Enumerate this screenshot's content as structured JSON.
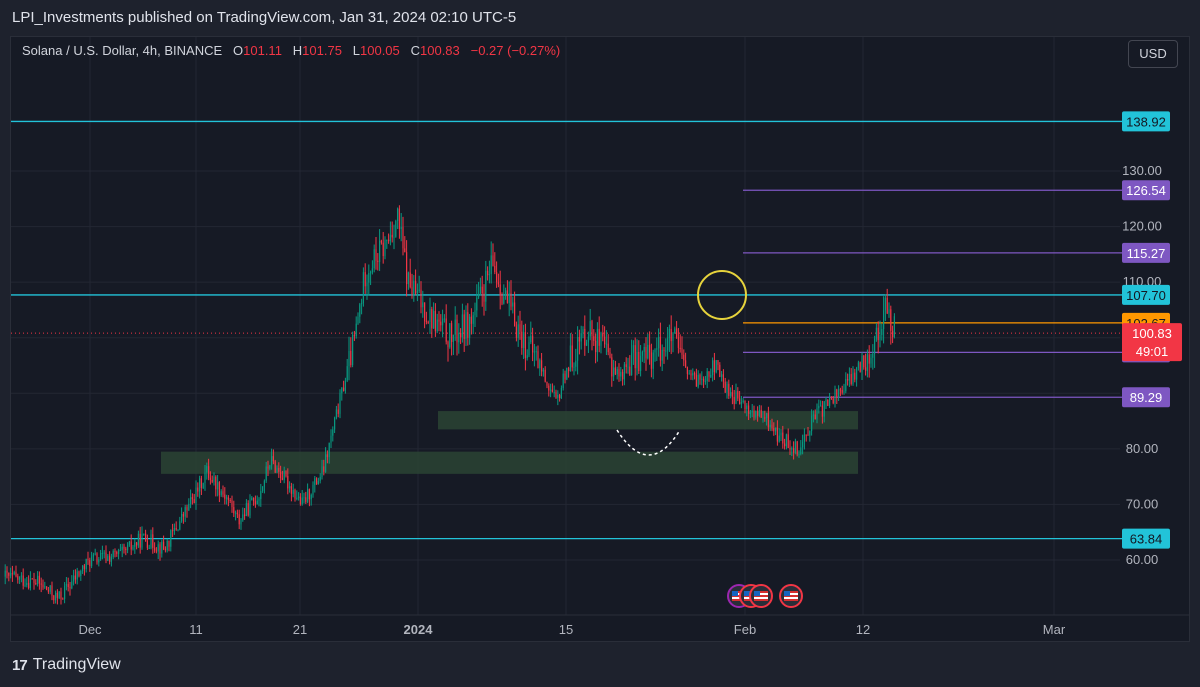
{
  "header": {
    "publisher_text": "LPI_Investments published on TradingView.com, Jan 31, 2024 02:10 UTC-5"
  },
  "legend": {
    "symbol": "Solana / U.S. Dollar, 4h, BINANCE",
    "open_label": "O",
    "open": "101.11",
    "high_label": "H",
    "high": "101.75",
    "low_label": "L",
    "low": "100.05",
    "close_label": "C",
    "close": "100.83",
    "change": "−0.27 (−0.27%)"
  },
  "currency_button": "USD",
  "footer": {
    "brand": "TradingView",
    "logo_glyph": "17"
  },
  "colors": {
    "up": "#089981",
    "down": "#f23645",
    "cyan_line": "#22c3d9",
    "purple_line": "#7e57c2",
    "orange_line": "#ff9800",
    "zone": "#2e4a35",
    "circle": "#e6d33c",
    "background": "#161a25"
  },
  "chart_data": {
    "type": "candlestick",
    "symbol": "Solana / U.S. Dollar",
    "interval": "4h",
    "exchange": "BINANCE",
    "ylim": [
      52,
      142
    ],
    "y_ticks": [
      "60.00",
      "70.00",
      "80.00",
      "90.00",
      "100.00",
      "110.00",
      "120.00",
      "130.00"
    ],
    "x_ticks": [
      "Dec",
      "11",
      "21",
      "2024",
      "15",
      "Feb",
      "12",
      "Mar"
    ],
    "price_path": [
      {
        "date": "2023-11-23",
        "price": 57
      },
      {
        "date": "2023-11-26",
        "price": 56
      },
      {
        "date": "2023-11-28",
        "price": 53
      },
      {
        "date": "2023-12-01",
        "price": 60
      },
      {
        "date": "2023-12-04",
        "price": 61
      },
      {
        "date": "2023-12-06",
        "price": 64
      },
      {
        "date": "2023-12-08",
        "price": 62
      },
      {
        "date": "2023-12-11",
        "price": 72
      },
      {
        "date": "2023-12-12",
        "price": 76
      },
      {
        "date": "2023-12-14",
        "price": 71
      },
      {
        "date": "2023-12-15",
        "price": 67
      },
      {
        "date": "2023-12-17",
        "price": 72
      },
      {
        "date": "2023-12-18",
        "price": 78
      },
      {
        "date": "2023-12-20",
        "price": 73
      },
      {
        "date": "2023-12-21",
        "price": 70
      },
      {
        "date": "2023-12-23",
        "price": 76
      },
      {
        "date": "2023-12-25",
        "price": 92
      },
      {
        "date": "2023-12-26",
        "price": 100
      },
      {
        "date": "2023-12-27",
        "price": 112
      },
      {
        "date": "2023-12-29",
        "price": 117
      },
      {
        "date": "2023-12-30",
        "price": 122
      },
      {
        "date": "2023-12-31",
        "price": 110
      },
      {
        "date": "2024-01-02",
        "price": 104
      },
      {
        "date": "2024-01-04",
        "price": 100
      },
      {
        "date": "2024-01-06",
        "price": 103
      },
      {
        "date": "2024-01-08",
        "price": 113
      },
      {
        "date": "2024-01-09",
        "price": 108
      },
      {
        "date": "2024-01-11",
        "price": 99
      },
      {
        "date": "2024-01-12",
        "price": 97
      },
      {
        "date": "2024-01-14",
        "price": 88
      },
      {
        "date": "2024-01-15",
        "price": 95
      },
      {
        "date": "2024-01-17",
        "price": 102
      },
      {
        "date": "2024-01-18",
        "price": 99
      },
      {
        "date": "2024-01-20",
        "price": 93
      },
      {
        "date": "2024-01-21",
        "price": 96
      },
      {
        "date": "2024-01-23",
        "price": 97
      },
      {
        "date": "2024-01-25",
        "price": 100
      },
      {
        "date": "2024-01-26",
        "price": 95
      },
      {
        "date": "2024-01-27",
        "price": 92
      },
      {
        "date": "2024-01-29",
        "price": 95
      },
      {
        "date": "2024-01-30",
        "price": 91
      },
      {
        "date": "2024-02-01",
        "price": 87
      },
      {
        "date": "2024-02-03",
        "price": 85
      },
      {
        "date": "2024-02-04",
        "price": 82
      },
      {
        "date": "2024-02-06",
        "price": 80
      },
      {
        "date": "2024-02-07",
        "price": 85
      },
      {
        "date": "2024-02-09",
        "price": 89
      },
      {
        "date": "2024-02-11",
        "price": 93
      },
      {
        "date": "2024-02-13",
        "price": 99
      },
      {
        "date": "2024-02-14",
        "price": 105
      },
      {
        "date": "2024-02-15",
        "price": 101
      }
    ],
    "horizontal_levels": [
      {
        "value": "138.92",
        "color": "cyan"
      },
      {
        "value": "126.54",
        "color": "purple"
      },
      {
        "value": "115.27",
        "color": "purple"
      },
      {
        "value": "107.70",
        "color": "cyan"
      },
      {
        "value": "102.67",
        "color": "orange"
      },
      {
        "value": "97.36",
        "color": "purple"
      },
      {
        "value": "89.29",
        "color": "purple"
      },
      {
        "value": "63.84",
        "color": "cyan"
      }
    ],
    "current_price": {
      "value": "100.83",
      "countdown": "49:01"
    },
    "zones": [
      {
        "low": 83.5,
        "high": 86.8
      },
      {
        "low": 75.5,
        "high": 79.5
      }
    ],
    "grid": true
  }
}
